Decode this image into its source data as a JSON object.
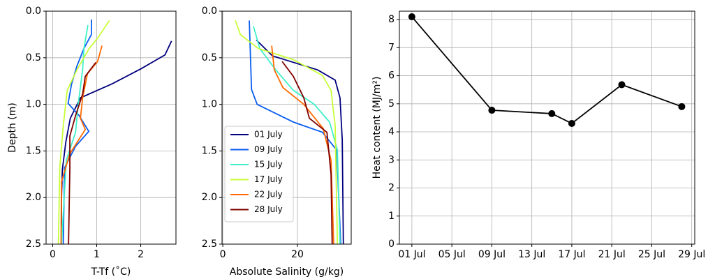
{
  "chart_data": [
    {
      "type": "line",
      "xlabel": "T-Tf (˚C)",
      "ylabel": "Depth (m)",
      "xlim": [
        -0.15,
        2.8
      ],
      "xticks": [
        0,
        1,
        2
      ],
      "ylim": [
        2.5,
        0
      ],
      "yticks": [
        {
          "value": 0,
          "label": "0.0"
        },
        0.5,
        {
          "value": 1,
          "label": "1.0"
        },
        1.5,
        {
          "value": 2,
          "label": "2.0"
        },
        2.5
      ],
      "grid": true,
      "series": [
        {
          "color": "#00007f",
          "x": [
            2.7,
            2.55,
            2.0,
            1.35,
            0.63,
            0.4,
            0.3,
            0.22,
            0.2,
            0.2
          ],
          "values": [
            0.32,
            0.47,
            0.62,
            0.78,
            0.93,
            1.15,
            1.4,
            1.7,
            2.0,
            2.5
          ]
        },
        {
          "color": "#0a5ef0",
          "x": [
            0.88,
            0.88,
            0.71,
            0.55,
            0.43,
            0.35,
            0.6,
            0.82,
            0.52,
            0.27,
            0.24
          ],
          "values": [
            0.09,
            0.25,
            0.4,
            0.59,
            0.78,
            0.99,
            1.12,
            1.29,
            1.45,
            1.68,
            2.5
          ]
        },
        {
          "color": "#40f0c8",
          "x": [
            0.8,
            0.71,
            0.68,
            0.58,
            0.52,
            0.31,
            0.2
          ],
          "values": [
            0.15,
            0.4,
            0.63,
            1.0,
            1.3,
            1.6,
            2.5
          ]
        },
        {
          "color": "#c8ff38",
          "x": [
            1.29,
            1.02,
            0.83,
            0.55,
            0.33,
            0.24,
            0.16,
            0.13
          ],
          "values": [
            0.1,
            0.29,
            0.4,
            0.63,
            0.85,
            1.23,
            1.68,
            2.5
          ]
        },
        {
          "color": "#ff6a00",
          "x": [
            1.12,
            1.02,
            0.79,
            0.68,
            0.63,
            0.74,
            0.39,
            0.2,
            0.19
          ],
          "values": [
            0.37,
            0.54,
            0.67,
            0.93,
            1.15,
            1.27,
            1.53,
            1.83,
            2.5
          ]
        },
        {
          "color": "#7f0000",
          "x": [
            0.98,
            0.74,
            0.68,
            0.52,
            0.39,
            0.39,
            0.36
          ],
          "values": [
            0.55,
            0.7,
            0.89,
            1.12,
            1.34,
            1.68,
            2.5
          ]
        }
      ]
    },
    {
      "type": "line",
      "xlabel": "Absolute Salinity (g/kg)",
      "xlim": [
        -0.2,
        34.4
      ],
      "xticks": [
        0,
        20
      ],
      "ylim": [
        2.5,
        0
      ],
      "yticks": [
        {
          "value": 0,
          "label": "0.0"
        },
        0.5,
        {
          "value": 1,
          "label": "1.0"
        },
        1.5,
        {
          "value": 2,
          "label": "2.0"
        },
        2.5
      ],
      "grid": true,
      "legend": "lower left",
      "series": [
        {
          "name": "01 July",
          "color": "#00007f",
          "x": [
            9.0,
            13.3,
            25.4,
            30.1,
            31.4,
            32.0,
            32.3
          ],
          "values": [
            0.31,
            0.48,
            0.63,
            0.74,
            0.93,
            1.38,
            2.5
          ]
        },
        {
          "name": "09 July",
          "color": "#0a5ef0",
          "x": [
            7.1,
            7.7,
            9.2,
            18.9,
            26.7,
            30.5,
            31.6
          ],
          "values": [
            0.1,
            0.84,
            1.0,
            1.19,
            1.3,
            1.49,
            2.5
          ]
        },
        {
          "name": "15 July",
          "color": "#40f0c8",
          "x": [
            8.2,
            9.9,
            14.2,
            18.9,
            24.5,
            28.6,
            30.7,
            31.4
          ],
          "values": [
            0.16,
            0.4,
            0.63,
            0.85,
            1.0,
            1.19,
            1.49,
            2.5
          ]
        },
        {
          "name": "17 July",
          "color": "#c8ff38",
          "x": [
            3.4,
            4.7,
            9.5,
            18.9,
            26.7,
            29.0,
            30.1,
            30.7
          ],
          "values": [
            0.1,
            0.25,
            0.4,
            0.52,
            0.69,
            0.85,
            1.23,
            2.5
          ]
        },
        {
          "name": "22 July",
          "color": "#ff6a00",
          "x": [
            13.1,
            13.8,
            16.1,
            21.7,
            26.9,
            29.0,
            29.7
          ],
          "values": [
            0.37,
            0.63,
            0.82,
            1.0,
            1.26,
            1.6,
            2.5
          ]
        },
        {
          "name": "28 July",
          "color": "#7f0000",
          "x": [
            15.9,
            18.9,
            21.7,
            23.2,
            27.9,
            29.0,
            29.3
          ],
          "values": [
            0.54,
            0.7,
            0.93,
            1.15,
            1.3,
            1.75,
            2.5
          ]
        }
      ]
    },
    {
      "type": "line",
      "ylabel": "Heat content (MJ/m²)",
      "xlim": [
        -0.25,
        29.3
      ],
      "xticks": [
        {
          "value": 1,
          "label": "01 Jul"
        },
        {
          "value": 5,
          "label": "05 Jul"
        },
        {
          "value": 9,
          "label": "09 Jul"
        },
        {
          "value": 13,
          "label": "13 Jul"
        },
        {
          "value": 17,
          "label": "17 Jul"
        },
        {
          "value": 21,
          "label": "21 Jul"
        },
        {
          "value": 25,
          "label": "25 Jul"
        },
        {
          "value": 29,
          "label": "29 Jul"
        }
      ],
      "ylim": [
        0,
        8.3
      ],
      "yticks": [
        0,
        1,
        2,
        3,
        4,
        5,
        6,
        7,
        8
      ],
      "grid": true,
      "markers": true,
      "series": [
        {
          "color": "#000000",
          "x": [
            1,
            9,
            15,
            17,
            22,
            28
          ],
          "values": [
            8.1,
            4.77,
            4.65,
            4.3,
            5.68,
            4.9
          ]
        }
      ]
    }
  ]
}
